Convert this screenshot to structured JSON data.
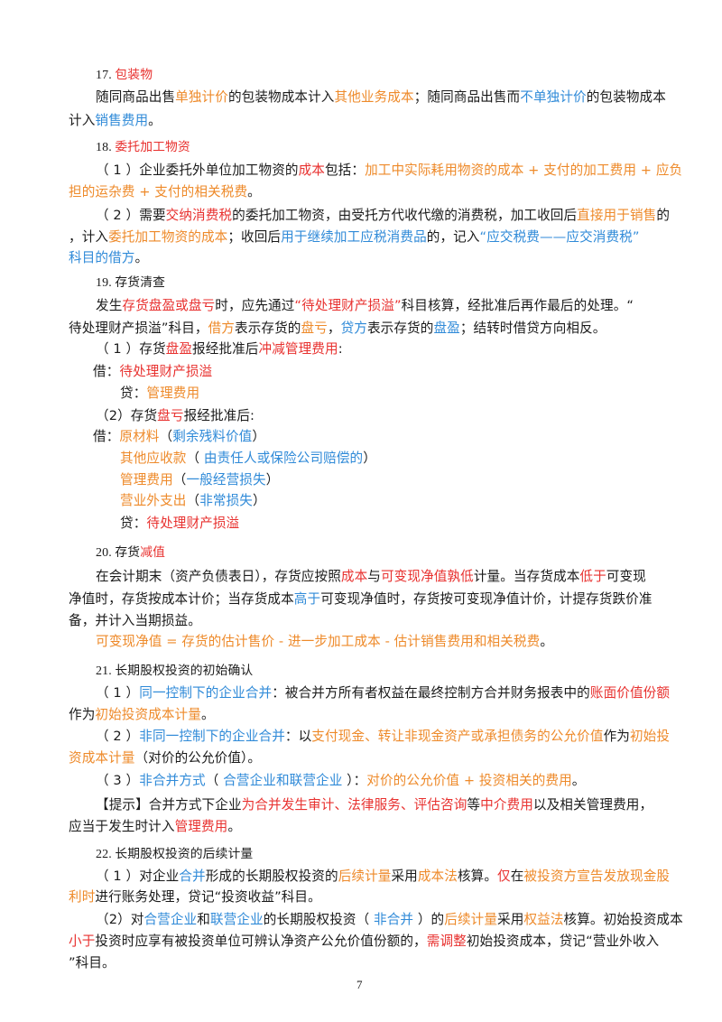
{
  "page_number": "7",
  "lines": [
    {
      "top": 73,
      "left": 106,
      "cls": "hd",
      "segs": [
        {
          "t": "17. ",
          "c": "blk num"
        },
        {
          "t": "包装物",
          "c": "red"
        }
      ]
    },
    {
      "top": 98,
      "left": 106,
      "segs": [
        {
          "t": "随同商品出售",
          "c": "blk"
        },
        {
          "t": "单独计价",
          "c": "org"
        },
        {
          "t": "的包装物成本计入",
          "c": "blk"
        },
        {
          "t": "其他业务成本",
          "c": "org"
        },
        {
          "t": "；随同商品出售而",
          "c": "blk"
        },
        {
          "t": "不单独计价",
          "c": "blu"
        },
        {
          "t": "的包装物成本",
          "c": "blk"
        }
      ]
    },
    {
      "top": 124,
      "left": 76,
      "segs": [
        {
          "t": "计入",
          "c": "blk"
        },
        {
          "t": "销售费用",
          "c": "blu"
        },
        {
          "t": "。",
          "c": "blk"
        }
      ]
    },
    {
      "top": 153,
      "left": 106,
      "cls": "hd",
      "segs": [
        {
          "t": "18. ",
          "c": "blk num"
        },
        {
          "t": "委托加工物资",
          "c": "red"
        }
      ]
    },
    {
      "top": 179,
      "left": 106,
      "segs": [
        {
          "t": "（ 1 ）企业委托外单位加工物资的",
          "c": "blk"
        },
        {
          "t": "成本",
          "c": "red"
        },
        {
          "t": "包括：",
          "c": "blk"
        },
        {
          "t": "加工中实际耗用物资的成本 + 支付的加工费用 + 应负",
          "c": "org"
        }
      ]
    },
    {
      "top": 203,
      "left": 76,
      "segs": [
        {
          "t": "担的运杂费 + 支付的相关税费",
          "c": "org"
        },
        {
          "t": "。",
          "c": "blk"
        }
      ]
    },
    {
      "top": 229,
      "left": 106,
      "segs": [
        {
          "t": "（ 2 ）需要",
          "c": "blk"
        },
        {
          "t": "交纳消费税",
          "c": "red"
        },
        {
          "t": "的委托加工物资，由受托方代收代缴的消费税，加工收回后",
          "c": "blk"
        },
        {
          "t": "直接用于销售",
          "c": "org"
        },
        {
          "t": "的",
          "c": "blk"
        }
      ]
    },
    {
      "top": 253,
      "left": 76,
      "segs": [
        {
          "t": "，计入",
          "c": "blk"
        },
        {
          "t": "委托加工物资的成本",
          "c": "org"
        },
        {
          "t": "；收回后",
          "c": "blk"
        },
        {
          "t": "用于继续加工应税消费品",
          "c": "blu"
        },
        {
          "t": "的，记入",
          "c": "blk"
        },
        {
          "t": "“应交税费——应交消费税”",
          "c": "blu"
        }
      ]
    },
    {
      "top": 276,
      "left": 76,
      "segs": [
        {
          "t": "科目的借方",
          "c": "blu"
        },
        {
          "t": "。",
          "c": "blk"
        }
      ]
    },
    {
      "top": 303,
      "left": 106,
      "cls": "hd",
      "segs": [
        {
          "t": "19. ",
          "c": "blk num"
        },
        {
          "t": "存货清查",
          "c": "blk"
        }
      ]
    },
    {
      "top": 329,
      "left": 106,
      "segs": [
        {
          "t": "发生",
          "c": "blk"
        },
        {
          "t": "存货盘盈或盘亏",
          "c": "red"
        },
        {
          "t": "时，应先通过",
          "c": "blk"
        },
        {
          "t": "“待处理财产损溢”",
          "c": "red"
        },
        {
          "t": "科目核算，经批准后再作最后的处理。“",
          "c": "blk"
        }
      ]
    },
    {
      "top": 354,
      "left": 76,
      "segs": [
        {
          "t": "待处理财产损溢”科目，",
          "c": "blk"
        },
        {
          "t": "借方",
          "c": "org"
        },
        {
          "t": "表示存货的",
          "c": "blk"
        },
        {
          "t": "盘亏",
          "c": "org"
        },
        {
          "t": "，",
          "c": "blk"
        },
        {
          "t": "贷方",
          "c": "blu"
        },
        {
          "t": "表示存货的",
          "c": "blk"
        },
        {
          "t": "盘盈",
          "c": "blu"
        },
        {
          "t": "；结转时借贷方向相反。",
          "c": "blk"
        }
      ]
    },
    {
      "top": 377,
      "left": 106,
      "segs": [
        {
          "t": "（ 1 ）存货",
          "c": "blk"
        },
        {
          "t": "盘盈",
          "c": "red"
        },
        {
          "t": "报经批准后",
          "c": "blk"
        },
        {
          "t": "冲减管理费用",
          "c": "red"
        },
        {
          "t": ":",
          "c": "blk"
        }
      ]
    },
    {
      "top": 402,
      "left": 103,
      "segs": [
        {
          "t": "借：",
          "c": "blk"
        },
        {
          "t": "待处理财产损溢",
          "c": "red"
        }
      ]
    },
    {
      "top": 426,
      "left": 133,
      "segs": [
        {
          "t": "贷：",
          "c": "blk"
        },
        {
          "t": "管理费用",
          "c": "org"
        }
      ]
    },
    {
      "top": 451,
      "left": 106,
      "segs": [
        {
          "t": "（2）存货",
          "c": "blk"
        },
        {
          "t": "盘亏",
          "c": "red"
        },
        {
          "t": "报经批准后:",
          "c": "blk"
        }
      ]
    },
    {
      "top": 474,
      "left": 103,
      "segs": [
        {
          "t": "借：",
          "c": "blk"
        },
        {
          "t": "原材料",
          "c": "org"
        },
        {
          "t": "（",
          "c": "blk"
        },
        {
          "t": "剩余残料价值",
          "c": "blu"
        },
        {
          "t": "）",
          "c": "blk"
        }
      ]
    },
    {
      "top": 498,
      "left": 133,
      "segs": [
        {
          "t": "其他应收款",
          "c": "org"
        },
        {
          "t": "（ ",
          "c": "blk"
        },
        {
          "t": "由责任人或保险公司赔偿的",
          "c": "blu"
        },
        {
          "t": "）",
          "c": "blk"
        }
      ]
    },
    {
      "top": 522,
      "left": 133,
      "segs": [
        {
          "t": "管理费用",
          "c": "org"
        },
        {
          "t": "（",
          "c": "blk"
        },
        {
          "t": "一般经营损失",
          "c": "blu"
        },
        {
          "t": "）",
          "c": "blk"
        }
      ]
    },
    {
      "top": 545,
      "left": 133,
      "segs": [
        {
          "t": "营业外支出",
          "c": "org"
        },
        {
          "t": "（",
          "c": "blk"
        },
        {
          "t": "非常损失",
          "c": "blu"
        },
        {
          "t": "）",
          "c": "blk"
        }
      ]
    },
    {
      "top": 570,
      "left": 133,
      "segs": [
        {
          "t": "贷：",
          "c": "blk"
        },
        {
          "t": "待处理财产损溢",
          "c": "red"
        }
      ]
    },
    {
      "top": 602,
      "left": 106,
      "cls": "hd",
      "segs": [
        {
          "t": "20. ",
          "c": "blk num"
        },
        {
          "t": "存货",
          "c": "blk"
        },
        {
          "t": "减值",
          "c": "red"
        }
      ]
    },
    {
      "top": 629,
      "left": 106,
      "segs": [
        {
          "t": "在会计期末（资产负债表日），存货应按照",
          "c": "blk"
        },
        {
          "t": "成本",
          "c": "red"
        },
        {
          "t": "与",
          "c": "blk"
        },
        {
          "t": "可变现净值孰低",
          "c": "red"
        },
        {
          "t": "计量。当存货成本",
          "c": "blk"
        },
        {
          "t": "低于",
          "c": "red"
        },
        {
          "t": "可变现",
          "c": "blk"
        }
      ]
    },
    {
      "top": 654,
      "left": 76,
      "segs": [
        {
          "t": "净值时，存货按成本计价；当存货成本",
          "c": "blk"
        },
        {
          "t": "高于",
          "c": "blu"
        },
        {
          "t": "可变现净值时，存货按可变现净值计价，计提存货跌价准",
          "c": "blk"
        }
      ]
    },
    {
      "top": 678,
      "left": 76,
      "segs": [
        {
          "t": "备，并计入当期损益。",
          "c": "blk"
        }
      ]
    },
    {
      "top": 701,
      "left": 106,
      "segs": [
        {
          "t": "可变现净值 = 存货的估计售价 - 进一步加工成本 - 估计销售费用和相关税费",
          "c": "org"
        },
        {
          "t": "。",
          "c": "blk"
        }
      ]
    },
    {
      "top": 733,
      "left": 106,
      "cls": "hd",
      "segs": [
        {
          "t": "21. ",
          "c": "blk num"
        },
        {
          "t": "长期股权投资的初始确认",
          "c": "blk"
        }
      ]
    },
    {
      "top": 758,
      "left": 106,
      "segs": [
        {
          "t": "（ 1 ）",
          "c": "blk"
        },
        {
          "t": "同一控制下的企业合并",
          "c": "blu"
        },
        {
          "t": "：被合并方所有者权益在最终控制方合并财务报表中的",
          "c": "blk"
        },
        {
          "t": "账面价值份额",
          "c": "red"
        }
      ]
    },
    {
      "top": 782,
      "left": 76,
      "segs": [
        {
          "t": "作为",
          "c": "blk"
        },
        {
          "t": "初始投资成本计量",
          "c": "org"
        },
        {
          "t": "。",
          "c": "blk"
        }
      ]
    },
    {
      "top": 806,
      "left": 106,
      "segs": [
        {
          "t": "（ 2 ）",
          "c": "blk"
        },
        {
          "t": "非同一控制下的企业合并",
          "c": "blu"
        },
        {
          "t": "：以",
          "c": "blk"
        },
        {
          "t": "支付现金、转让非现金资产或承担债务的公允价值",
          "c": "org"
        },
        {
          "t": "作为",
          "c": "blk"
        },
        {
          "t": "初始投",
          "c": "org"
        }
      ]
    },
    {
      "top": 830,
      "left": 76,
      "segs": [
        {
          "t": "资成本计量",
          "c": "org"
        },
        {
          "t": "（对价的公允价值）。",
          "c": "blk"
        }
      ]
    },
    {
      "top": 855,
      "left": 106,
      "segs": [
        {
          "t": "（ 3 ）",
          "c": "blk"
        },
        {
          "t": "非合并方式",
          "c": "blu"
        },
        {
          "t": "（ ",
          "c": "blk"
        },
        {
          "t": "合营企业和联营企业",
          "c": "blu"
        },
        {
          "t": " ）：",
          "c": "blk"
        },
        {
          "t": "对价的公允价值 + 投资相关的费用",
          "c": "org"
        },
        {
          "t": "。",
          "c": "blk"
        }
      ]
    },
    {
      "top": 882,
      "left": 106,
      "segs": [
        {
          "t": "【提示】合并方式下企业",
          "c": "blk"
        },
        {
          "t": "为合并发生审计、法律服务、评估咨询",
          "c": "red"
        },
        {
          "t": "等",
          "c": "blk"
        },
        {
          "t": "中介费用",
          "c": "red"
        },
        {
          "t": "以及相关管理费用，",
          "c": "blk"
        }
      ]
    },
    {
      "top": 906,
      "left": 76,
      "segs": [
        {
          "t": "应当于发生时计入",
          "c": "blk"
        },
        {
          "t": "管理费用",
          "c": "red"
        },
        {
          "t": "。",
          "c": "blk"
        }
      ]
    },
    {
      "top": 936,
      "left": 106,
      "cls": "hd",
      "segs": [
        {
          "t": "22. ",
          "c": "blk num"
        },
        {
          "t": "长期股权投资的后续计量",
          "c": "blk"
        }
      ]
    },
    {
      "top": 961,
      "left": 106,
      "segs": [
        {
          "t": "（ 1 ）对企业",
          "c": "blk"
        },
        {
          "t": "合并",
          "c": "blu"
        },
        {
          "t": "形成的长期股权投资的",
          "c": "blk"
        },
        {
          "t": "后续计量",
          "c": "org"
        },
        {
          "t": "采用",
          "c": "blk"
        },
        {
          "t": "成本法",
          "c": "org"
        },
        {
          "t": "核算。",
          "c": "blk"
        },
        {
          "t": "仅",
          "c": "red"
        },
        {
          "t": "在",
          "c": "blk"
        },
        {
          "t": "被投资方宣告发放现金股",
          "c": "org"
        }
      ]
    },
    {
      "top": 984,
      "left": 76,
      "segs": [
        {
          "t": "利时",
          "c": "org"
        },
        {
          "t": "进行账务处理，贷记“投资收益”科目。",
          "c": "blk"
        }
      ]
    },
    {
      "top": 1009,
      "left": 106,
      "segs": [
        {
          "t": "（2）对",
          "c": "blk"
        },
        {
          "t": "合营企业",
          "c": "blu"
        },
        {
          "t": "和",
          "c": "blk"
        },
        {
          "t": "联营企业",
          "c": "blu"
        },
        {
          "t": "的长期股权投资（ ",
          "c": "blk"
        },
        {
          "t": "非合并",
          "c": "blu"
        },
        {
          "t": " ）的",
          "c": "blk"
        },
        {
          "t": "后续计量",
          "c": "org"
        },
        {
          "t": "采用",
          "c": "blk"
        },
        {
          "t": "权益法",
          "c": "org"
        },
        {
          "t": "核算。初始投资成本",
          "c": "blk"
        }
      ]
    },
    {
      "top": 1033,
      "left": 76,
      "segs": [
        {
          "t": "小于",
          "c": "red"
        },
        {
          "t": "投资时应享有被投资单位可辨认净资产公允价值份额的，",
          "c": "blk"
        },
        {
          "t": "需调整",
          "c": "red"
        },
        {
          "t": "初始投资成本，贷记“营业外收入",
          "c": "blk"
        }
      ]
    },
    {
      "top": 1057,
      "left": 76,
      "segs": [
        {
          "t": "”科目。",
          "c": "blk"
        }
      ]
    }
  ]
}
